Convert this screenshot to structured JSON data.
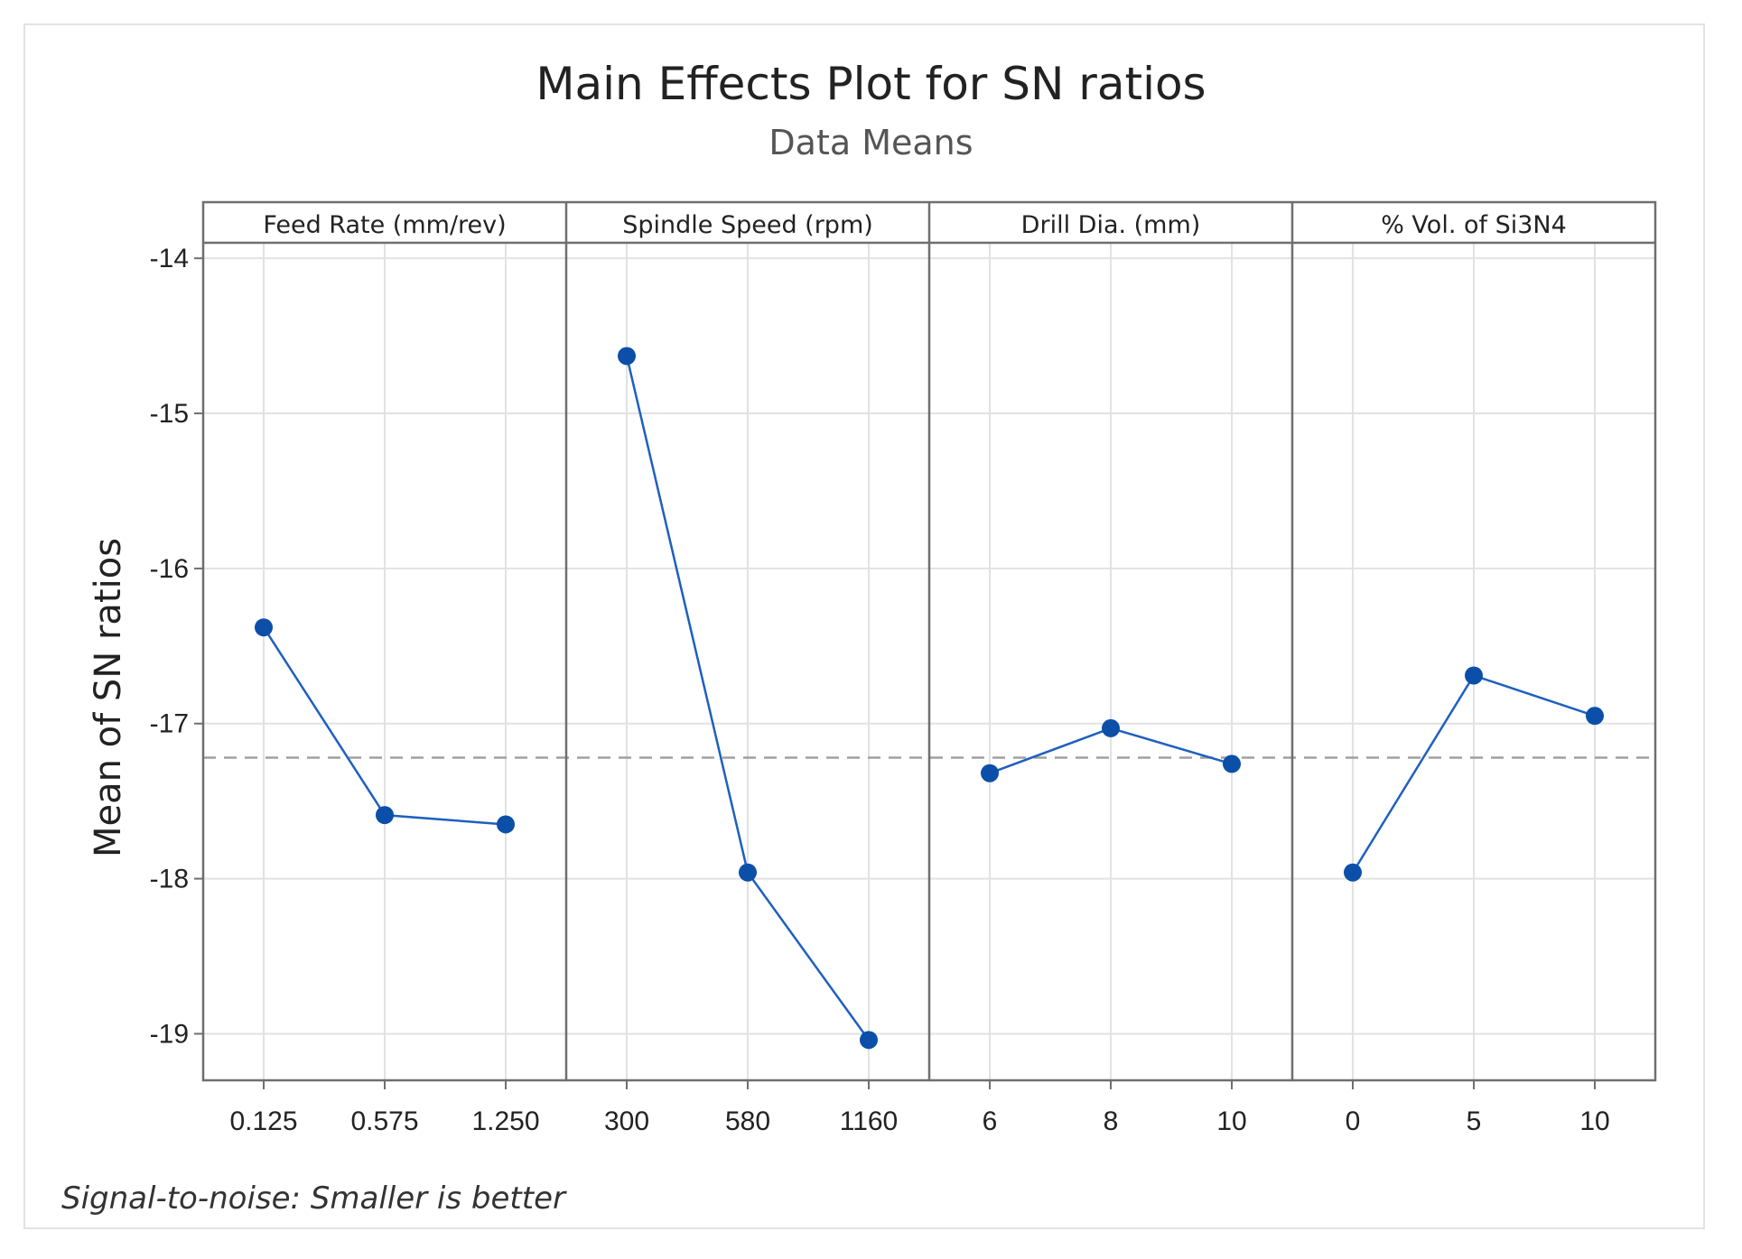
{
  "chart_data": {
    "type": "line",
    "title": "Main Effects Plot for SN ratios",
    "subtitle": "Data Means",
    "ylabel": "Mean of SN ratios",
    "footnote": "Signal-to-noise: Smaller is better",
    "ylim": [
      -19.3,
      -13.9
    ],
    "yticks": [
      -14,
      -15,
      -16,
      -17,
      -18,
      -19
    ],
    "ytick_labels": [
      "-14",
      "-15",
      "-16",
      "-17",
      "-18",
      "-19"
    ],
    "grid": true,
    "overall_mean": -17.22,
    "series_color": "#1f5fbf",
    "marker_color": "#0b4fa8",
    "mean_line_color": "#a0a0a0",
    "panels": [
      {
        "name": "Feed Rate (mm/rev)",
        "levels": [
          "0.125",
          "0.575",
          "1.250"
        ],
        "values": [
          -16.38,
          -17.59,
          -17.65
        ]
      },
      {
        "name": "Spindle Speed (rpm)",
        "levels": [
          "300",
          "580",
          "1160"
        ],
        "values": [
          -14.63,
          -17.96,
          -19.04
        ]
      },
      {
        "name": "Drill Dia. (mm)",
        "levels": [
          "6",
          "8",
          "10"
        ],
        "values": [
          -17.32,
          -17.03,
          -17.26
        ]
      },
      {
        "name": "% Vol. of Si3N4",
        "levels": [
          "0",
          "5",
          "10"
        ],
        "values": [
          -17.96,
          -16.69,
          -16.95
        ]
      }
    ]
  }
}
